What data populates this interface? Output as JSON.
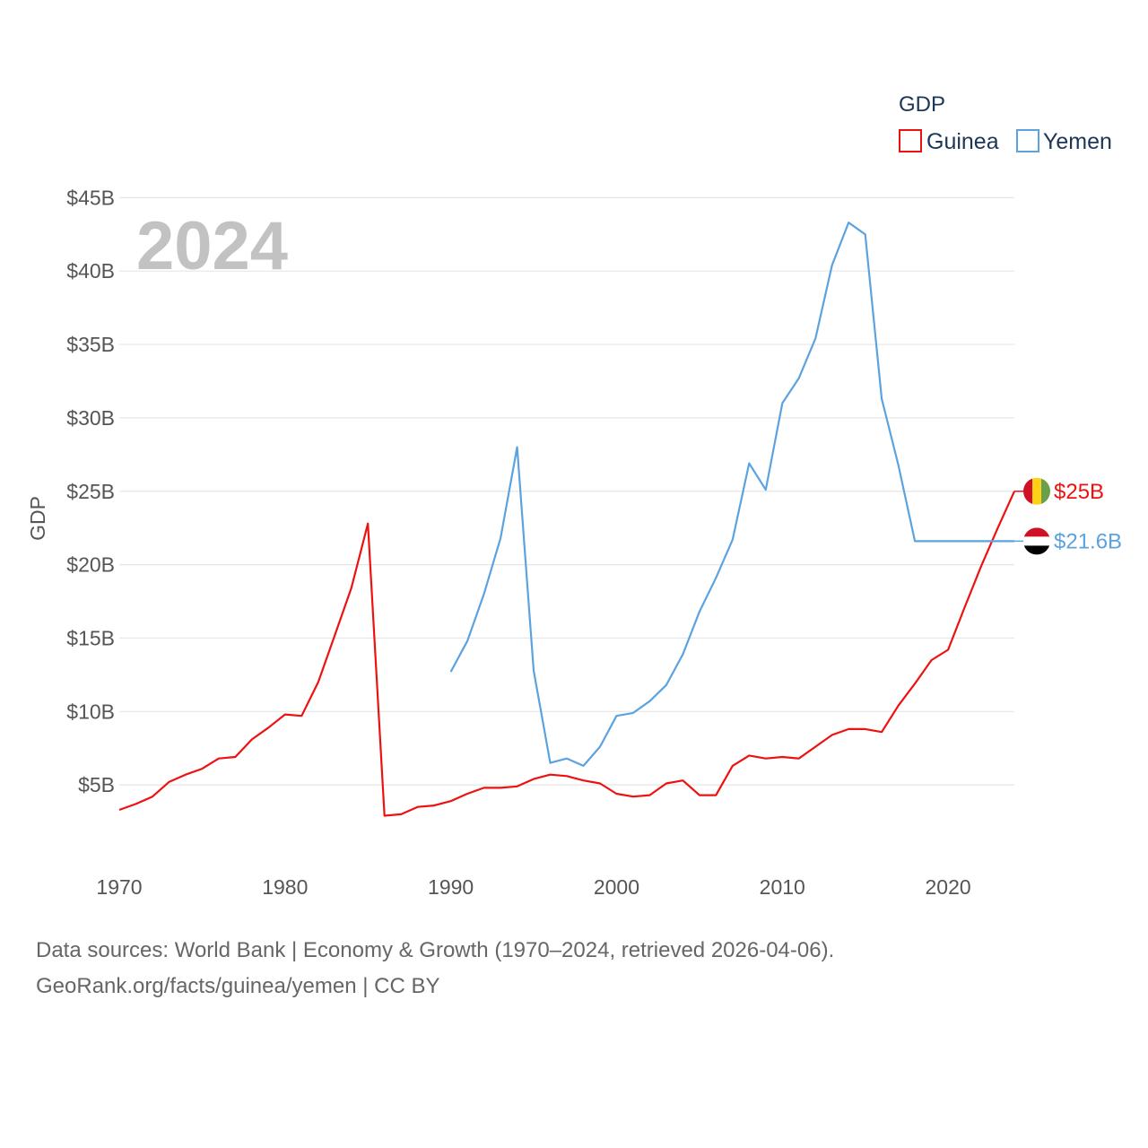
{
  "chart_data": {
    "type": "line",
    "year_label": "2024",
    "ylabel": "GDP",
    "xlim": [
      1970,
      2024
    ],
    "ylim": [
      0,
      45
    ],
    "x_ticks": [
      1970,
      1980,
      1990,
      2000,
      2010,
      2020
    ],
    "y_ticks": [
      5,
      10,
      15,
      20,
      25,
      30,
      35,
      40,
      45
    ],
    "y_tick_labels": [
      "$5B",
      "$10B",
      "$15B",
      "$20B",
      "$25B",
      "$30B",
      "$35B",
      "$40B",
      "$45B"
    ],
    "grid": true,
    "legend": {
      "title": "GDP",
      "position": "top-right",
      "entries": [
        "Guinea",
        "Yemen"
      ]
    },
    "series": [
      {
        "name": "Guinea",
        "color": "#ee1111",
        "end_label": "$25B",
        "flag_icon": "guinea-flag-icon",
        "flag_colors": [
          "#ce1126",
          "#fcd116",
          "#6ba04a"
        ],
        "x": [
          1970,
          1971,
          1972,
          1973,
          1974,
          1975,
          1976,
          1977,
          1978,
          1979,
          1980,
          1981,
          1982,
          1983,
          1984,
          1985,
          1986,
          1987,
          1988,
          1989,
          1990,
          1991,
          1992,
          1993,
          1994,
          1995,
          1996,
          1997,
          1998,
          1999,
          2000,
          2001,
          2002,
          2003,
          2004,
          2005,
          2006,
          2007,
          2008,
          2009,
          2010,
          2011,
          2012,
          2013,
          2014,
          2015,
          2016,
          2017,
          2018,
          2019,
          2020,
          2021,
          2022,
          2023,
          2024
        ],
        "values": [
          3.3,
          3.7,
          4.2,
          5.2,
          5.7,
          6.1,
          6.8,
          6.9,
          8.1,
          8.9,
          9.8,
          9.7,
          12.0,
          15.2,
          18.4,
          22.8,
          2.9,
          3.0,
          3.5,
          3.6,
          3.9,
          4.4,
          4.8,
          4.8,
          4.9,
          5.4,
          5.7,
          5.6,
          5.3,
          5.1,
          4.4,
          4.2,
          4.3,
          5.1,
          5.3,
          4.3,
          4.3,
          6.3,
          7.0,
          6.8,
          6.9,
          6.8,
          7.6,
          8.4,
          8.8,
          8.8,
          8.6,
          10.4,
          11.9,
          13.5,
          14.2,
          17.1,
          19.9,
          22.5,
          25.0
        ]
      },
      {
        "name": "Yemen",
        "color": "#5ba3e0",
        "end_label": "$21.6B",
        "flag_icon": "yemen-flag-icon",
        "flag_colors": [
          "#ce1126",
          "#ffffff",
          "#000000"
        ],
        "x": [
          1990,
          1991,
          1992,
          1993,
          1994,
          1995,
          1996,
          1997,
          1998,
          1999,
          2000,
          2001,
          2002,
          2003,
          2004,
          2005,
          2006,
          2007,
          2008,
          2009,
          2010,
          2011,
          2012,
          2013,
          2014,
          2015,
          2016,
          2017,
          2018,
          2019,
          2020,
          2021,
          2022,
          2023,
          2024
        ],
        "values": [
          12.7,
          14.8,
          18.0,
          21.8,
          28.0,
          12.8,
          6.5,
          6.8,
          6.3,
          7.6,
          9.7,
          9.9,
          10.7,
          11.8,
          13.9,
          16.8,
          19.1,
          21.7,
          26.9,
          25.1,
          31.0,
          32.7,
          35.4,
          40.4,
          43.3,
          42.5,
          31.3,
          26.8,
          21.6,
          21.6,
          21.6,
          21.6,
          21.6,
          21.6,
          21.6
        ]
      }
    ]
  },
  "source": {
    "line1": "Data sources: World Bank | Economy & Growth (1970–2024, retrieved 2026-04-06).",
    "line2": "GeoRank.org/facts/guinea/yemen | CC BY"
  }
}
